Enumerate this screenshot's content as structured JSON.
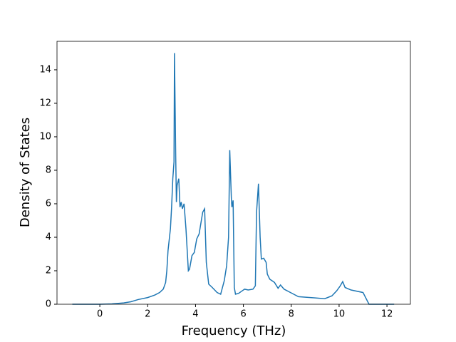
{
  "chart_data": {
    "type": "line",
    "x_label": "Frequency (THz)",
    "y_label": "Density of States",
    "x": [
      -1.15,
      0,
      0.5,
      1,
      1.3,
      1.6,
      2,
      2.3,
      2.5,
      2.65,
      2.75,
      2.8,
      2.85,
      2.95,
      3.0,
      3.05,
      3.1,
      3.12,
      3.17,
      3.2,
      3.23,
      3.3,
      3.35,
      3.4,
      3.45,
      3.52,
      3.6,
      3.7,
      3.75,
      3.85,
      3.95,
      4.05,
      4.15,
      4.3,
      4.38,
      4.45,
      4.55,
      4.7,
      4.9,
      5.05,
      5.2,
      5.3,
      5.38,
      5.43,
      5.5,
      5.52,
      5.57,
      5.62,
      5.67,
      5.8,
      5.95,
      6.05,
      6.2,
      6.4,
      6.5,
      6.55,
      6.63,
      6.7,
      6.75,
      6.85,
      6.95,
      7.0,
      7.1,
      7.3,
      7.45,
      7.55,
      7.7,
      7.9,
      8.1,
      8.3,
      9.0,
      9.4,
      9.7,
      9.9,
      10.05,
      10.15,
      10.25,
      10.5,
      11.0,
      11.25,
      12.3
    ],
    "series": [
      {
        "name": "DOS",
        "color": "#1f77b4",
        "values": [
          0,
          0,
          0.02,
          0.08,
          0.15,
          0.28,
          0.4,
          0.55,
          0.7,
          0.9,
          1.3,
          2.0,
          3.2,
          4.5,
          5.8,
          7.5,
          8.5,
          15.0,
          9.0,
          6.1,
          7.1,
          7.5,
          5.8,
          6.1,
          5.7,
          6.0,
          4.5,
          2.0,
          2.1,
          2.9,
          3.1,
          3.9,
          4.2,
          5.5,
          5.7,
          2.5,
          1.2,
          1.0,
          0.7,
          0.6,
          1.4,
          2.3,
          4.0,
          9.2,
          6.2,
          5.8,
          6.2,
          1.0,
          0.6,
          0.65,
          0.8,
          0.9,
          0.85,
          0.9,
          1.1,
          5.5,
          7.2,
          4.0,
          2.7,
          2.75,
          2.5,
          1.8,
          1.5,
          1.3,
          0.95,
          1.15,
          0.9,
          0.75,
          0.6,
          0.45,
          0.38,
          0.33,
          0.5,
          0.8,
          1.1,
          1.35,
          1.0,
          0.85,
          0.7,
          0,
          0
        ]
      }
    ],
    "xlim": [
      -1.79,
      12.98
    ],
    "ylim": [
      0,
      15.7
    ],
    "xticks": [
      0,
      2,
      4,
      6,
      8,
      10,
      12
    ],
    "yticks": [
      0,
      2,
      4,
      6,
      8,
      10,
      12,
      14
    ]
  }
}
